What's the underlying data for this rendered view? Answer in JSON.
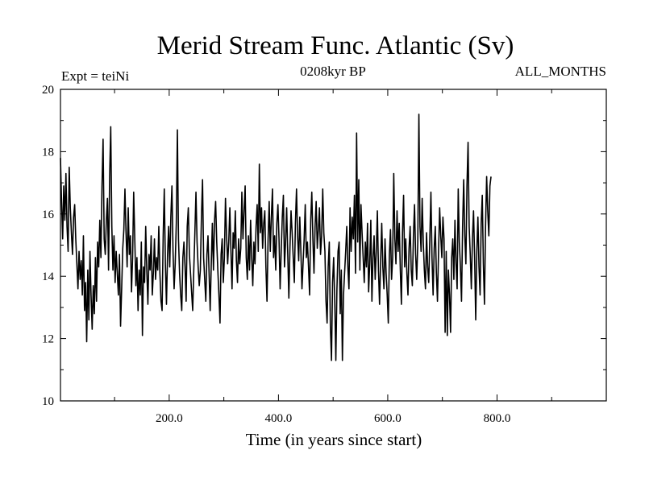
{
  "chart_data": {
    "type": "line",
    "title": "Merid Stream Func. Atlantic (Sv)",
    "subtitle_left": "Expt = teiNi",
    "subtitle_center": "0208kyr BP",
    "subtitle_right": "ALL_MONTHS",
    "xlabel": "Time (in years since start)",
    "ylabel": "",
    "xlim": [
      1,
      1000
    ],
    "ylim": [
      10,
      20
    ],
    "x_ticks": [
      200,
      400,
      600,
      800
    ],
    "x_tick_labels": [
      "200.0",
      "400.0",
      "600.0",
      "800.0"
    ],
    "y_ticks": [
      10,
      12,
      14,
      16,
      18,
      20
    ],
    "y_tick_labels": [
      "10",
      "12",
      "14",
      "16",
      "18",
      "20"
    ],
    "series": [
      {
        "name": "Merid Stream Func. Atlantic",
        "x_start": 1,
        "x_step": 2,
        "values": [
          17.8,
          16.4,
          15.2,
          16.9,
          15.8,
          17.3,
          15.6,
          14.8,
          17.5,
          16.2,
          15.4,
          14.7,
          15.9,
          16.3,
          15.2,
          14.4,
          13.6,
          14.8,
          13.9,
          14.5,
          13.4,
          15.3,
          12.9,
          13.8,
          11.9,
          14.2,
          12.6,
          14.8,
          13.4,
          12.3,
          13.7,
          12.8,
          14.6,
          13.2,
          15.1,
          14.3,
          15.8,
          14.6,
          16.9,
          18.4,
          15.2,
          14.7,
          15.8,
          16.5,
          14.2,
          17.2,
          18.8,
          15.6,
          14.2,
          15.3,
          13.8,
          14.8,
          14.1,
          13.4,
          14.7,
          12.4,
          13.6,
          14.9,
          15.5,
          16.8,
          15.4,
          14.3,
          16.2,
          14.7,
          15.3,
          13.5,
          14.6,
          16.7,
          15.2,
          13.7,
          14.6,
          12.9,
          14.2,
          13.4,
          15.1,
          12.1,
          14.3,
          13.8,
          15.6,
          14.2,
          13.1,
          14.7,
          14.2,
          15.3,
          13.4,
          14.1,
          15.2,
          13.9,
          14.6,
          14.2,
          15.6,
          14.1,
          13.2,
          12.9,
          15.3,
          16.8,
          14.4,
          13.1,
          14.7,
          15.6,
          14.3,
          15.9,
          16.9,
          14.8,
          13.6,
          14.4,
          15.7,
          18.7,
          15.2,
          14.1,
          13.4,
          12.9,
          14.6,
          15.1,
          14.3,
          13.2,
          15.6,
          16.2,
          14.7,
          14.1,
          13.5,
          12.9,
          14.2,
          15.4,
          16.7,
          15.1,
          14.3,
          13.7,
          14.2,
          15.9,
          17.1,
          14.6,
          13.9,
          13.2,
          14.7,
          15.3,
          14.1,
          12.9,
          14.4,
          15.7,
          14.2,
          15.8,
          16.4,
          15.1,
          14.2,
          13.4,
          12.5,
          14.7,
          15.2,
          13.8,
          14.6,
          16.5,
          15.3,
          14.4,
          15.1,
          16.2,
          14.8,
          13.6,
          15.4,
          14.9,
          16.1,
          14.5,
          13.8,
          15.2,
          14.4,
          14.9,
          16.7,
          15.2,
          16.1,
          16.9,
          14.6,
          13.9,
          15.3,
          14.2,
          15.8,
          14.6,
          13.7,
          15.1,
          14.4,
          15.6,
          16.3,
          14.8,
          17.6,
          15.4,
          16.2,
          14.9,
          15.7,
          16.1,
          14.3,
          13.2,
          15.2,
          16.4,
          14.8,
          15.9,
          16.8,
          14.6,
          15.3,
          14.2,
          15.7,
          16.3,
          15.2,
          13.6,
          14.8,
          15.9,
          16.6,
          14.3,
          15.1,
          16.2,
          14.7,
          13.3,
          14.9,
          16.1,
          15.4,
          14.6,
          13.8,
          15.7,
          16.8,
          15.3,
          14.5,
          15.9,
          14.8,
          13.6,
          14.4,
          15.2,
          16.3,
          14.6,
          15.1,
          14.3,
          13.4,
          15.8,
          16.7,
          15.2,
          14.1,
          15.6,
          16.4,
          14.9,
          15.5,
          16.2,
          14.7,
          15.3,
          16.8,
          15.4,
          14.8,
          13.2,
          12.5,
          14.3,
          15.1,
          12.4,
          11.3,
          13.8,
          14.6,
          13.2,
          11.3,
          13.6,
          14.8,
          15.1,
          12.8,
          14.2,
          11.3,
          13.4,
          14.1,
          14.8,
          15.6,
          14.3,
          13.6,
          16.2,
          14.8,
          15.9,
          15.2,
          16.6,
          14.1,
          18.6,
          15.1,
          17.1,
          14.2,
          16.3,
          15.4,
          14.6,
          13.8,
          15.1,
          14.3,
          15.7,
          13.5,
          14.4,
          15.8,
          13.2,
          14.6,
          15.3,
          13.9,
          14.8,
          16.1,
          14.2,
          13.1,
          14.5,
          15.7,
          14.3,
          13.6,
          15.2,
          14.1,
          13.4,
          12.5,
          14.7,
          15.5,
          13.9,
          14.6,
          17.3,
          15.2,
          14.4,
          16.1,
          14.8,
          15.7,
          14.2,
          13.1,
          15.4,
          16.6,
          14.3,
          15.2,
          14.1,
          13.4,
          14.9,
          15.6,
          14.2,
          13.7,
          15.3,
          16.3,
          14.7,
          13.9,
          15.1,
          19.2,
          15.6,
          14.8,
          16.5,
          15.1,
          14.2,
          13.6,
          15.4,
          14.3,
          13.8,
          15.2,
          16.7,
          14.6,
          13.4,
          14.9,
          15.6,
          14.1,
          13.2,
          14.8,
          16.2,
          15.3,
          14.6,
          15.9,
          15.2,
          12.2,
          14.8,
          12.1,
          14.2,
          13.4,
          12.2,
          14.6,
          15.2,
          13.9,
          15.8,
          14.4,
          13.6,
          16.8,
          15.1,
          14.3,
          13.2,
          15.6,
          17.1,
          15.3,
          14.4,
          16.9,
          18.3,
          15.6,
          14.7,
          13.6,
          15.2,
          16.1,
          14.6,
          12.6,
          14.8,
          15.9,
          14.3,
          13.4,
          15.7,
          16.6,
          14.4,
          13.1,
          15.6,
          17.2,
          16.1,
          15.3,
          16.9,
          17.2
        ]
      }
    ]
  }
}
